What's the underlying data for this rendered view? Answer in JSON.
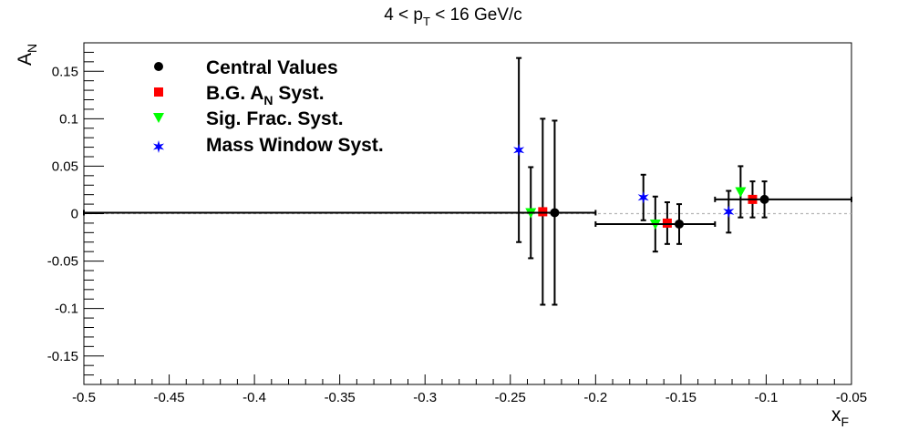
{
  "chart_data": {
    "type": "scatter",
    "title": {
      "main": "4 < p",
      "sub": "T",
      "rest": " < 16 GeV/c"
    },
    "xlabel": {
      "main": "x",
      "sub": "F"
    },
    "ylabel": {
      "main": "A",
      "sub": "N"
    },
    "xlim": [
      -0.5,
      -0.05
    ],
    "ylim": [
      -0.18,
      0.18
    ],
    "x_ticks": [
      -0.5,
      -0.45,
      -0.4,
      -0.35,
      -0.3,
      -0.25,
      -0.2,
      -0.15,
      -0.1,
      -0.05
    ],
    "x_tick_labels": [
      "-0.5",
      "-0.45",
      "-0.4",
      "-0.35",
      "-0.3",
      "-0.25",
      "-0.2",
      "-0.15",
      "-0.1",
      "-0.05"
    ],
    "y_ticks": [
      -0.15,
      -0.1,
      -0.05,
      0,
      0.05,
      0.1,
      0.15
    ],
    "y_tick_labels": [
      "-0.15",
      "-0.1",
      "-0.05",
      "0",
      "0.05",
      "0.1",
      "0.15"
    ],
    "reference_line": {
      "y": 0,
      "style": "dotted",
      "color": "#b4b4b4"
    },
    "legend_position": "top-left",
    "series": [
      {
        "name": "Central Values",
        "marker": "circle",
        "color": "#000000",
        "points": [
          {
            "x": -0.224,
            "y": 0.001,
            "yerr": 0.097,
            "xlo": -0.5,
            "xhi": -0.2
          },
          {
            "x": -0.151,
            "y": -0.011,
            "yerr": 0.021,
            "xlo": -0.2,
            "xhi": -0.13
          },
          {
            "x": -0.101,
            "y": 0.015,
            "yerr": 0.019,
            "xlo": -0.13,
            "xhi": -0.05
          }
        ]
      },
      {
        "name": "B.G. A_N Syst.",
        "label": {
          "main": "B.G. A",
          "sub": "N",
          "rest": " Syst."
        },
        "marker": "square",
        "color": "#ff0000",
        "points": [
          {
            "x": -0.231,
            "y": 0.002,
            "yerr": 0.098
          },
          {
            "x": -0.158,
            "y": -0.01,
            "yerr": 0.022
          },
          {
            "x": -0.108,
            "y": 0.015,
            "yerr": 0.019
          }
        ]
      },
      {
        "name": "Sig. Frac. Syst.",
        "marker": "triangle-down",
        "color": "#00ff00",
        "points": [
          {
            "x": -0.238,
            "y": 0.001,
            "yerr": 0.048
          },
          {
            "x": -0.165,
            "y": -0.011,
            "yerr": 0.029
          },
          {
            "x": -0.115,
            "y": 0.023,
            "yerr": 0.027
          }
        ]
      },
      {
        "name": "Mass Window Syst.",
        "marker": "star",
        "color": "#0000ff",
        "points": [
          {
            "x": -0.245,
            "y": 0.067,
            "yerr": 0.097
          },
          {
            "x": -0.172,
            "y": 0.017,
            "yerr": 0.024
          },
          {
            "x": -0.122,
            "y": 0.002,
            "yerr": 0.022
          }
        ]
      }
    ]
  }
}
